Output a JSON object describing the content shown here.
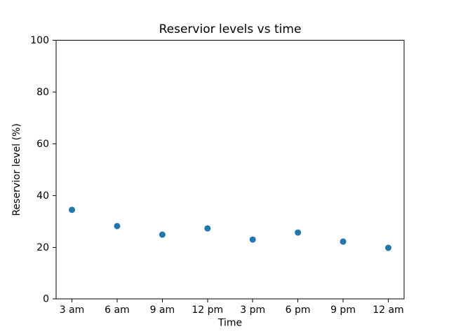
{
  "chart_data": {
    "type": "scatter",
    "title": "Reservior levels vs time",
    "xlabel": "Time",
    "ylabel": "Reservior level (%)",
    "categories": [
      "3 am",
      "6 am",
      "9 am",
      "12 pm",
      "3 pm",
      "6 pm",
      "9 pm",
      "12 am"
    ],
    "values": [
      34.5,
      28.2,
      24.9,
      27.3,
      23.0,
      25.7,
      22.2,
      19.8
    ],
    "yticks": [
      0,
      20,
      40,
      60,
      80,
      100
    ],
    "ylim": [
      0,
      100
    ],
    "grid": false,
    "legend": "none",
    "marker_color": "#1f77b4",
    "axis_color": "#000000",
    "background_color": "#ffffff"
  }
}
